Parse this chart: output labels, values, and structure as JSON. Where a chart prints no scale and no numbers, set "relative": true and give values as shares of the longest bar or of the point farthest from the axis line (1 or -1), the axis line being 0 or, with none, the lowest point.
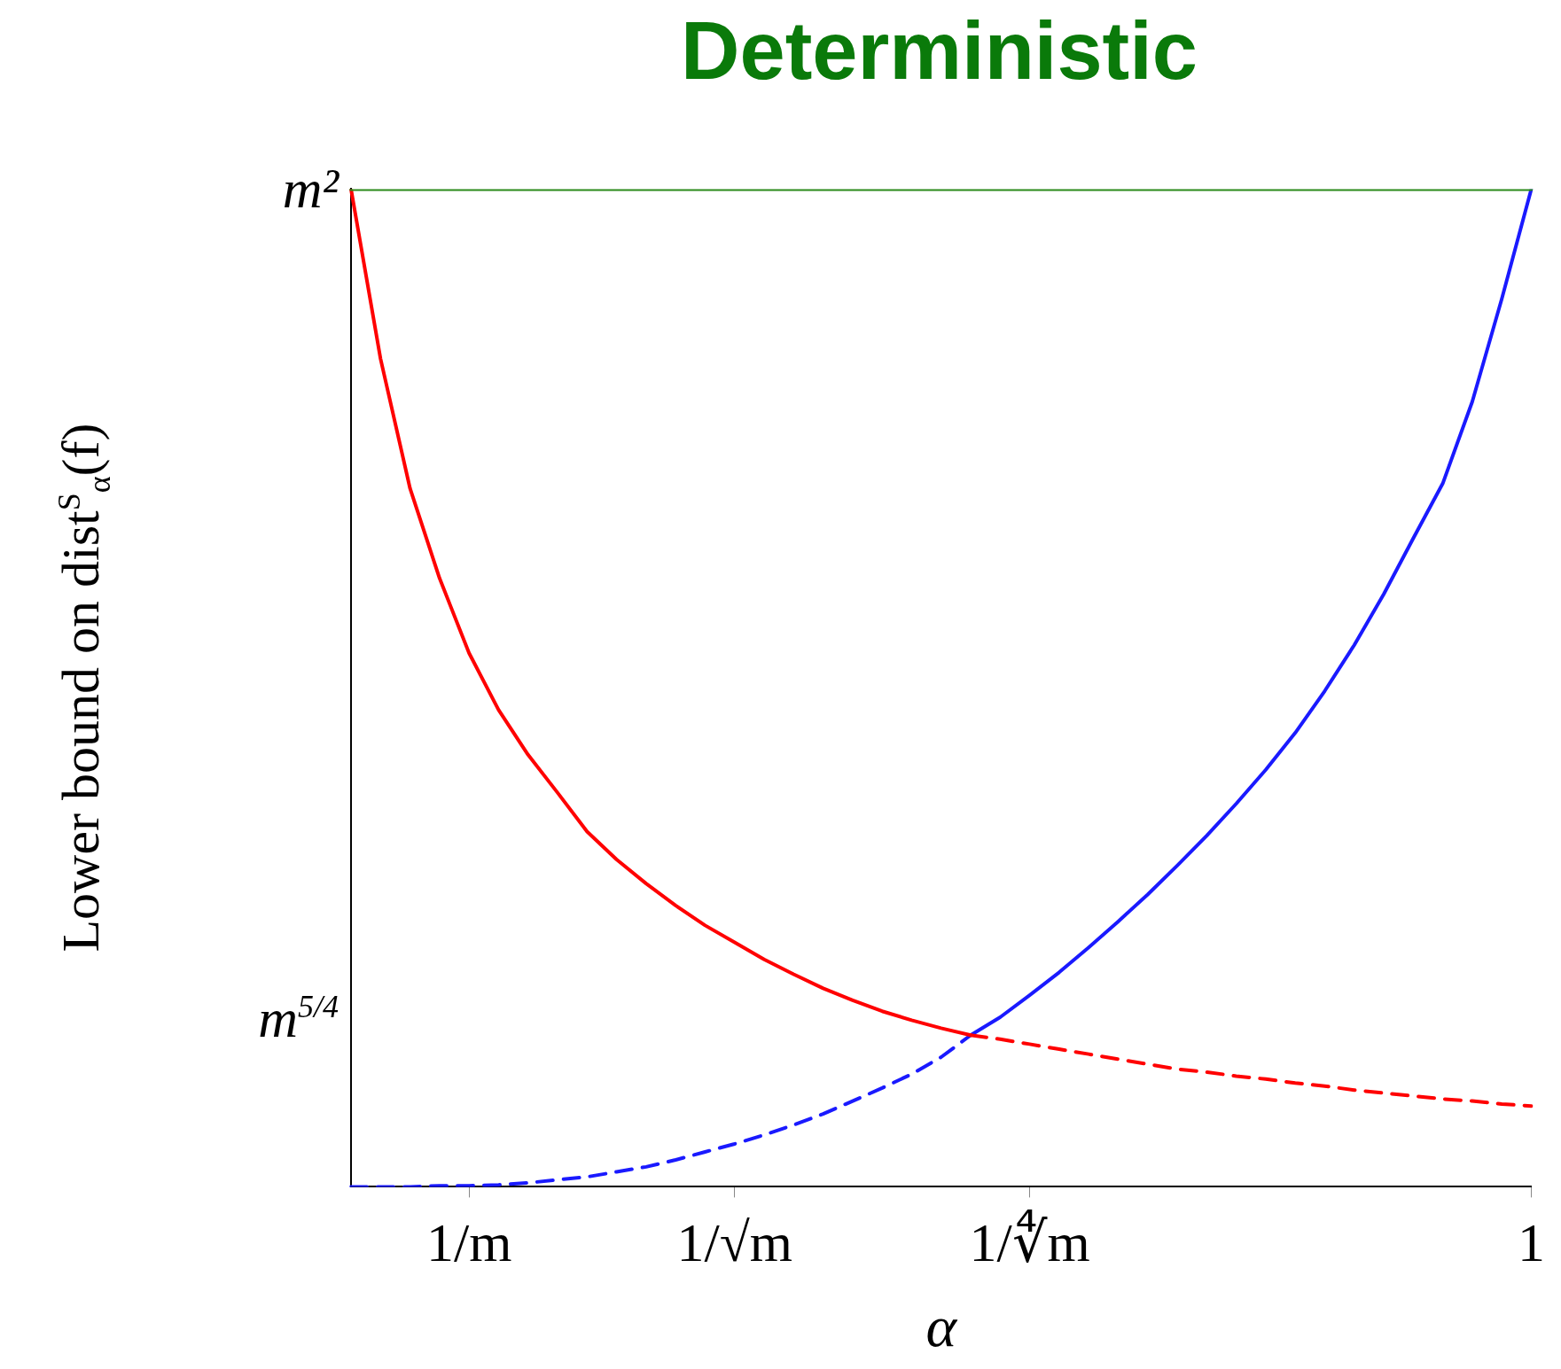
{
  "chart_data": {
    "type": "line",
    "title": "Deterministic",
    "xlabel": "α",
    "ylabel": "Lower bound on dist$^{S}$$_{α}$(f)",
    "relative": true,
    "categories": [
      null,
      null,
      null,
      null,
      "1/m",
      null,
      null,
      null,
      null,
      null,
      null,
      null,
      null,
      "1/√m",
      null,
      null,
      null,
      null,
      null,
      null,
      null,
      null,
      null,
      "1/∜m",
      null,
      null,
      null,
      null,
      null,
      null,
      null,
      null,
      null,
      null,
      null,
      null,
      null,
      null,
      null,
      null,
      "1"
    ],
    "annotations": [
      "m²",
      "m$^{5/4}$"
    ],
    "grid": false,
    "legend": false,
    "marker": "none",
    "series": [
      {
        "color": "#2a8a1a",
        "line_style": "solid",
        "values": [
          1,
          1,
          1,
          1,
          1,
          1,
          1,
          1,
          1,
          1,
          1,
          1,
          1,
          1,
          1,
          1,
          1,
          1,
          1,
          1,
          1,
          1,
          1,
          1,
          1,
          1,
          1,
          1,
          1,
          1,
          1,
          1,
          1,
          1,
          1,
          1,
          1,
          1,
          1,
          1,
          1
        ]
      },
      {
        "color": "#ff0000",
        "line_style": "solid",
        "values": [
          1,
          0.83,
          0.7,
          0.61,
          0.535,
          0.478,
          0.433,
          0.395,
          0.356,
          0.328,
          0.304,
          0.282,
          0.262,
          0.245,
          0.228,
          0.213,
          0.199,
          0.187,
          0.176,
          0.167,
          0.159,
          0.152,
          null,
          null,
          null,
          null,
          null,
          null,
          null,
          null,
          null,
          null,
          null,
          null,
          null,
          null,
          null,
          null,
          null,
          null,
          null
        ]
      },
      {
        "color": "#ff0000",
        "line_style": "dashed",
        "values": [
          null,
          null,
          null,
          null,
          null,
          null,
          null,
          null,
          null,
          null,
          null,
          null,
          null,
          null,
          null,
          null,
          null,
          null,
          null,
          null,
          null,
          0.152,
          0.148,
          0.143,
          0.138,
          0.133,
          0.128,
          0.123,
          0.118,
          0.115,
          0.111,
          0.108,
          0.104,
          0.101,
          0.097,
          0.094,
          0.091,
          0.088,
          0.086,
          0.083,
          0.081
        ]
      },
      {
        "color": "#1a1aff",
        "line_style": "dashed",
        "values": [
          0,
          0,
          0,
          0.001,
          0.001,
          0.002,
          0.004,
          0.007,
          0.01,
          0.015,
          0.02,
          0.027,
          0.035,
          0.043,
          0.052,
          0.062,
          0.073,
          0.086,
          0.099,
          0.113,
          0.13,
          0.152,
          null,
          null,
          null,
          null,
          null,
          null,
          null,
          null,
          null,
          null,
          null,
          null,
          null,
          null,
          null,
          null,
          null,
          null,
          null
        ]
      },
      {
        "color": "#1a1aff",
        "line_style": "solid",
        "values": [
          null,
          null,
          null,
          null,
          null,
          null,
          null,
          null,
          null,
          null,
          null,
          null,
          null,
          null,
          null,
          null,
          null,
          null,
          null,
          null,
          null,
          0.152,
          0.17,
          0.192,
          0.215,
          0.24,
          0.266,
          0.293,
          0.322,
          0.352,
          0.384,
          0.418,
          0.455,
          0.497,
          0.543,
          0.594,
          0.65,
          0.705,
          0.787,
          0.89,
          1
        ]
      }
    ]
  }
}
